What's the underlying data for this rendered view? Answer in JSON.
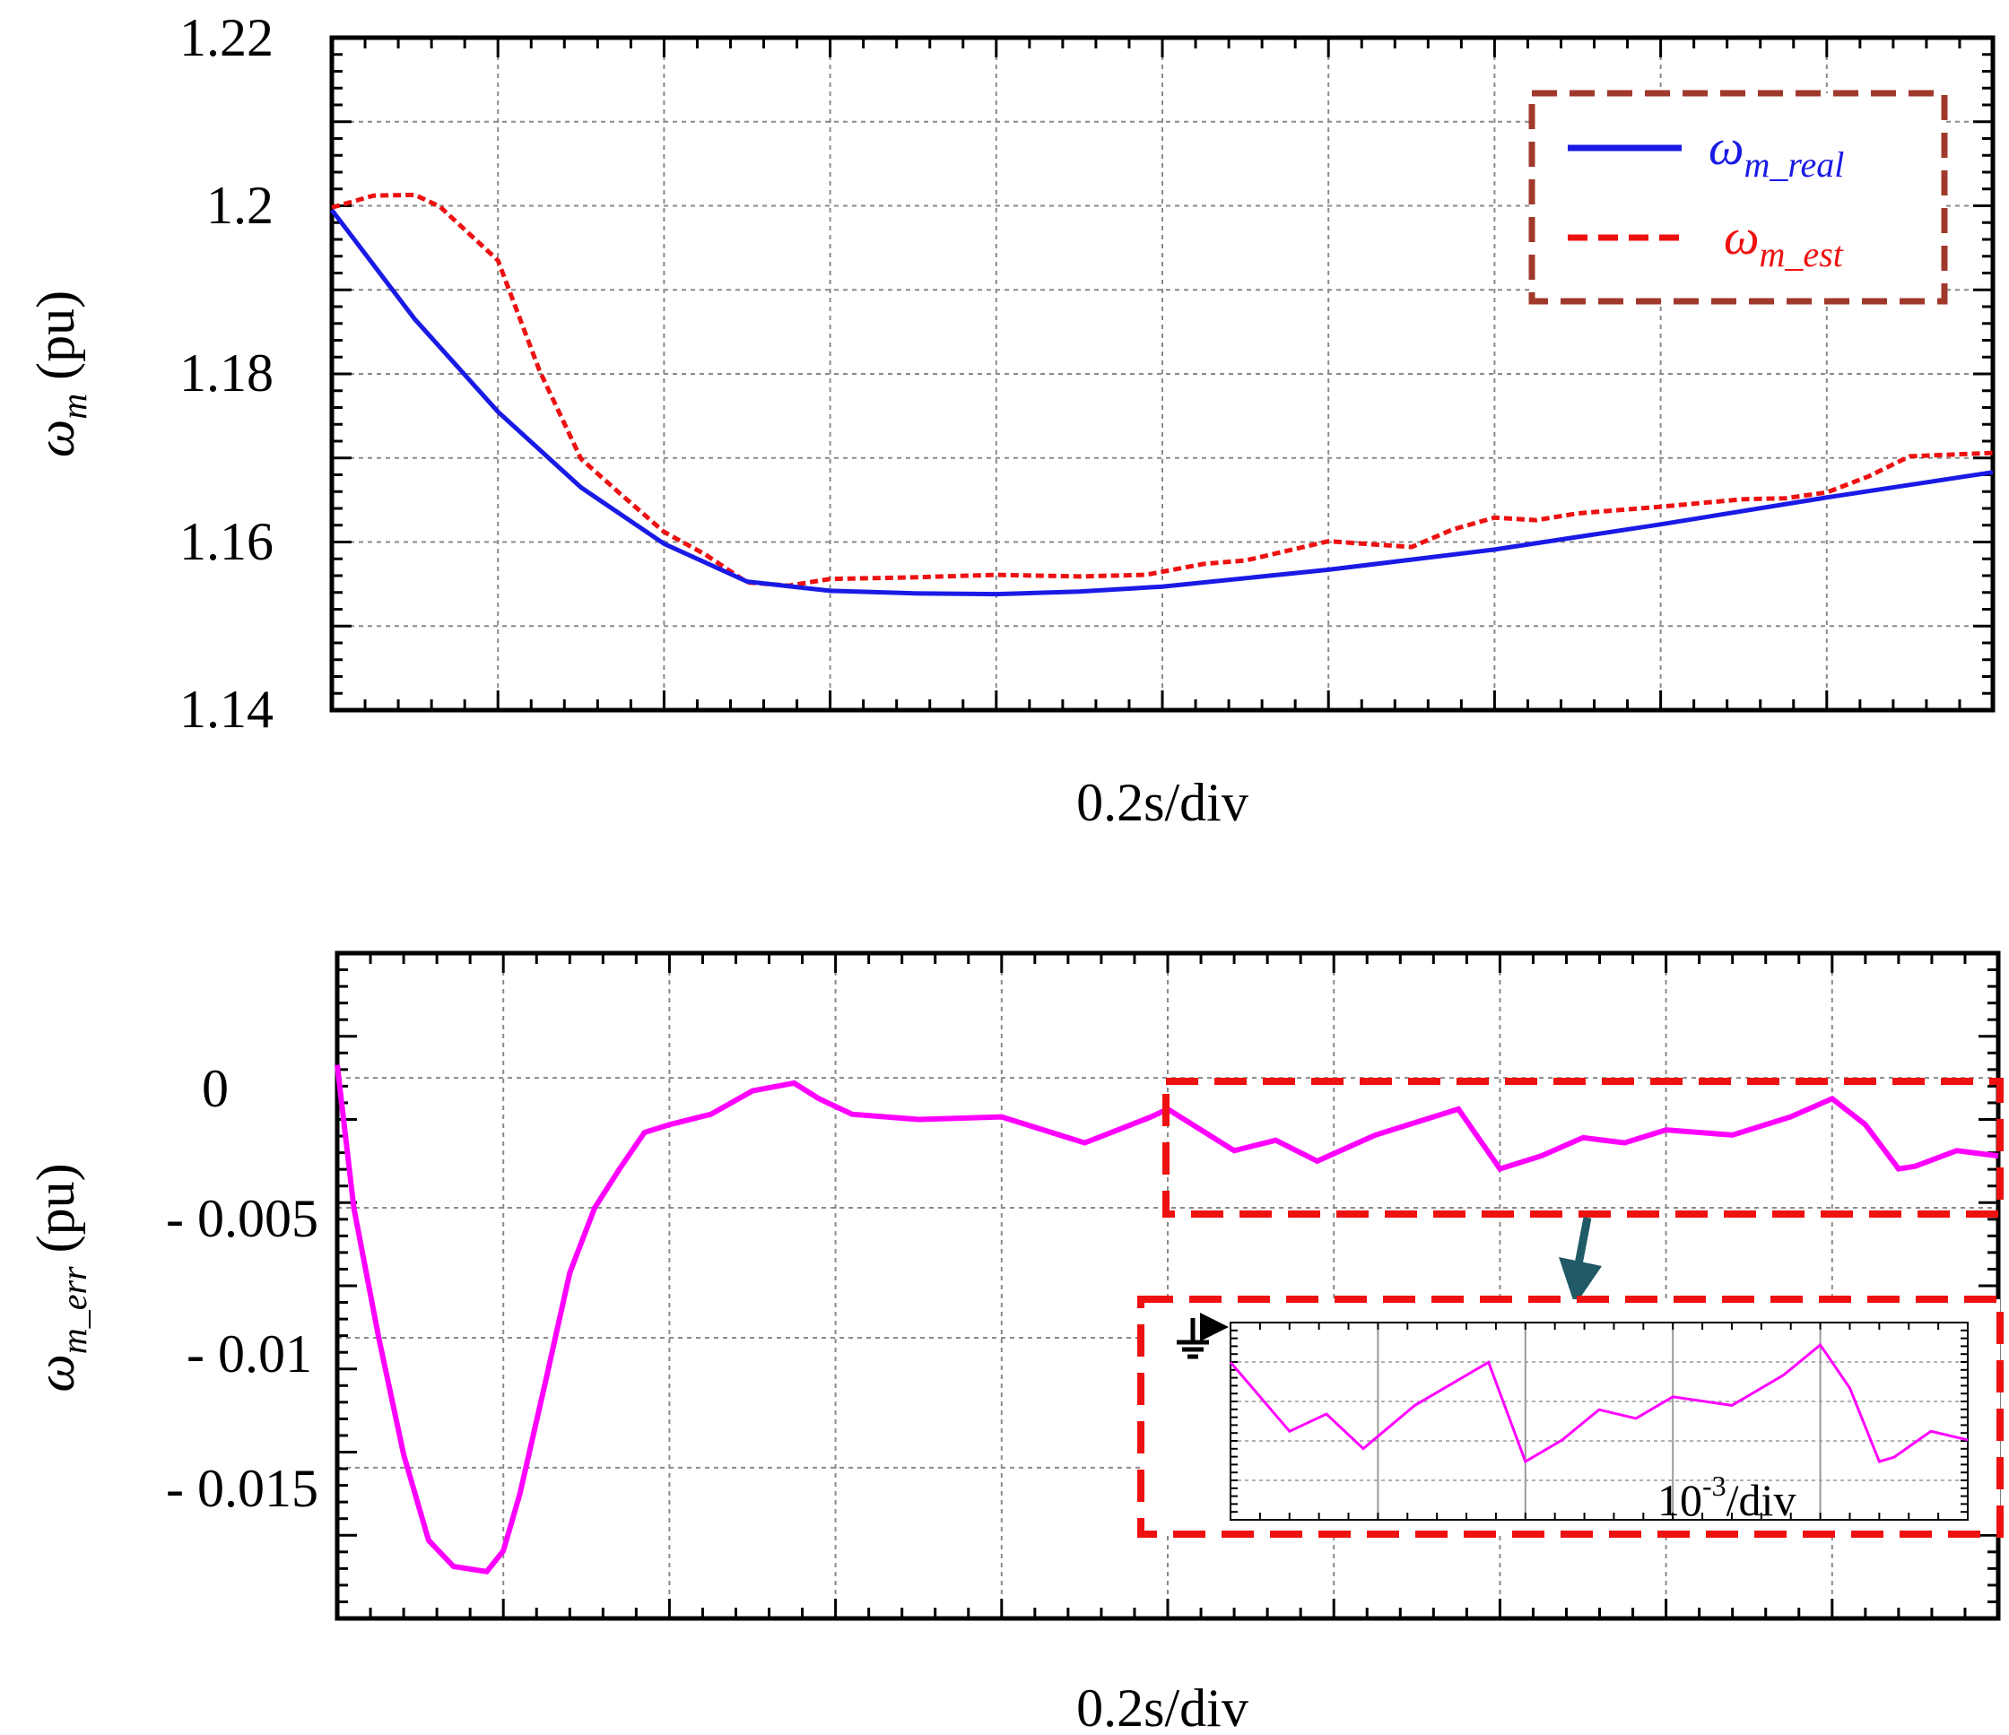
{
  "colors": {
    "real": "#1a1ae6",
    "est": "#ee1111",
    "err": "#ff00ff",
    "legend_box": "#a0392b",
    "zoom_box": "#ee1111",
    "arrow": "#1f5a66",
    "grid": "#8a8a8a"
  },
  "chart_data": [
    {
      "type": "line",
      "title": "",
      "xlabel": "0.2s/div",
      "ylabel_symbol": "ω",
      "ylabel_sub": "m",
      "ylabel_unit": " (pu)",
      "xlim": [
        0,
        2.0
      ],
      "ylim": [
        1.14,
        1.22
      ],
      "yticks": [
        1.14,
        1.16,
        1.18,
        1.2,
        1.22
      ],
      "ytick_labels": [
        "1.14",
        "1.16",
        "1.18",
        "1.2",
        "1.22"
      ],
      "x_divisions": 10,
      "y_divisions": 8,
      "legend": {
        "position": "top-right",
        "entries": [
          {
            "symbol": "ω",
            "sub": "m_real",
            "color_key": "real",
            "style": "solid"
          },
          {
            "symbol": "ω",
            "sub": "m_est",
            "color_key": "est",
            "style": "dashed"
          }
        ]
      },
      "series": [
        {
          "name": "ωm_real",
          "color_key": "real",
          "style": "solid",
          "x": [
            0,
            0.1,
            0.2,
            0.3,
            0.4,
            0.5,
            0.6,
            0.7,
            0.8,
            0.9,
            1.0,
            1.2,
            1.4,
            1.6,
            1.8,
            2.0
          ],
          "y": [
            1.1995,
            1.1865,
            1.1755,
            1.1665,
            1.1598,
            1.1553,
            1.1542,
            1.1539,
            1.1538,
            1.1541,
            1.1547,
            1.1567,
            1.1591,
            1.1621,
            1.1653,
            1.1683
          ]
        },
        {
          "name": "ωm_est",
          "color_key": "est",
          "style": "dashed",
          "x": [
            0,
            0.05,
            0.1,
            0.13,
            0.2,
            0.25,
            0.3,
            0.35,
            0.4,
            0.45,
            0.5,
            0.55,
            0.6,
            0.7,
            0.8,
            0.9,
            0.98,
            1.05,
            1.1,
            1.2,
            1.3,
            1.35,
            1.4,
            1.45,
            1.5,
            1.6,
            1.7,
            1.75,
            1.8,
            1.85,
            1.9,
            2.0
          ],
          "y": [
            1.1998,
            1.2012,
            1.2013,
            1.1999,
            1.1935,
            1.1804,
            1.1699,
            1.1655,
            1.1612,
            1.1585,
            1.1552,
            1.1548,
            1.1556,
            1.1558,
            1.1561,
            1.1559,
            1.1561,
            1.1574,
            1.1578,
            1.1601,
            1.1594,
            1.1615,
            1.1629,
            1.1626,
            1.1634,
            1.1642,
            1.1651,
            1.1652,
            1.1659,
            1.1678,
            1.1702,
            1.1706
          ]
        }
      ]
    },
    {
      "type": "line",
      "title": "",
      "xlabel": "0.2s/div",
      "ylabel_symbol": "ω",
      "ylabel_sub": "m_err",
      "ylabel_unit": " (pu)",
      "xlim": [
        0,
        2.0
      ],
      "ylim": [
        -0.0208,
        0.0048
      ],
      "yticks": [
        0,
        -0.005,
        -0.01,
        -0.015
      ],
      "ytick_labels": [
        "0",
        "- 0.005",
        "- 0.01",
        "- 0.015"
      ],
      "x_divisions": 10,
      "series": [
        {
          "name": "ωm_err",
          "color_key": "err",
          "style": "solid",
          "x": [
            0,
            0.02,
            0.05,
            0.08,
            0.11,
            0.14,
            0.16,
            0.18,
            0.2,
            0.22,
            0.25,
            0.28,
            0.31,
            0.34,
            0.37,
            0.4,
            0.45,
            0.5,
            0.55,
            0.58,
            0.62,
            0.7,
            0.8,
            0.9,
            0.98,
            1.0,
            1.03,
            1.08,
            1.13,
            1.18,
            1.25,
            1.35,
            1.4,
            1.45,
            1.5,
            1.55,
            1.6,
            1.68,
            1.75,
            1.8,
            1.84,
            1.88,
            1.9,
            1.95,
            2.0
          ],
          "y": [
            0.0005,
            -0.005,
            -0.01,
            -0.0145,
            -0.0178,
            -0.0188,
            -0.0189,
            -0.019,
            -0.0182,
            -0.016,
            -0.0118,
            -0.0075,
            -0.005,
            -0.0035,
            -0.0021,
            -0.0018,
            -0.0014,
            -0.0005,
            -0.0002,
            -0.0008,
            -0.0014,
            -0.0016,
            -0.0015,
            -0.0025,
            -0.0015,
            -0.0012,
            -0.0018,
            -0.0028,
            -0.0024,
            -0.0032,
            -0.0022,
            -0.0012,
            -0.0035,
            -0.003,
            -0.0023,
            -0.0025,
            -0.002,
            -0.0022,
            -0.0015,
            -0.0008,
            -0.0018,
            -0.0035,
            -0.0034,
            -0.0028,
            -0.003
          ]
        }
      ],
      "zoom_inset": {
        "x_range": [
          1.0,
          2.0
        ],
        "ylabel": "10-3/div",
        "label_main": "10",
        "label_sup": "-3",
        "label_rest": "/div"
      }
    }
  ]
}
